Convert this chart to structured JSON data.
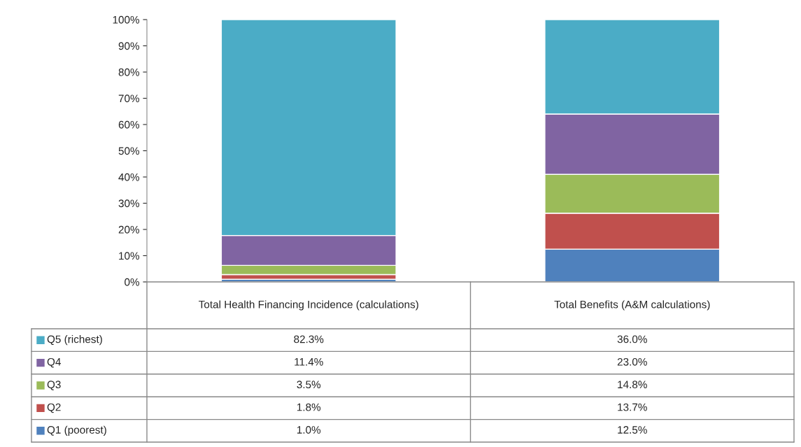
{
  "chart_data": {
    "type": "bar",
    "stacked": true,
    "categories": [
      "Total Health Financing Incidence (calculations)",
      "Total Benefits (A&M calculations)"
    ],
    "series": [
      {
        "name": "Q1 (poorest)",
        "color": "#4f81bd",
        "values": [
          1.0,
          12.5
        ],
        "value_labels": [
          "1.0%",
          "12.5%"
        ]
      },
      {
        "name": "Q2",
        "color": "#c0504d",
        "values": [
          1.8,
          13.7
        ],
        "value_labels": [
          "1.8%",
          "13.7%"
        ]
      },
      {
        "name": "Q3",
        "color": "#9bbb59",
        "values": [
          3.5,
          14.8
        ],
        "value_labels": [
          "3.5%",
          "14.8%"
        ]
      },
      {
        "name": "Q4",
        "color": "#8064a2",
        "values": [
          11.4,
          23.0
        ],
        "value_labels": [
          "11.4%",
          "23.0%"
        ]
      },
      {
        "name": "Q5 (richest)",
        "color": "#4bacc6",
        "values": [
          82.3,
          36.0
        ],
        "value_labels": [
          "82.3%",
          "36.0%"
        ]
      }
    ],
    "ylim": [
      0,
      100
    ],
    "yticks": [
      {
        "value": 0,
        "label": "0%"
      },
      {
        "value": 10,
        "label": "10%"
      },
      {
        "value": 20,
        "label": "20%"
      },
      {
        "value": 30,
        "label": "30%"
      },
      {
        "value": 40,
        "label": "40%"
      },
      {
        "value": 50,
        "label": "50%"
      },
      {
        "value": 60,
        "label": "60%"
      },
      {
        "value": 70,
        "label": "70%"
      },
      {
        "value": 80,
        "label": "80%"
      },
      {
        "value": 90,
        "label": "90%"
      },
      {
        "value": 100,
        "label": "100%"
      }
    ],
    "grid": false,
    "legend": "bottom left"
  }
}
